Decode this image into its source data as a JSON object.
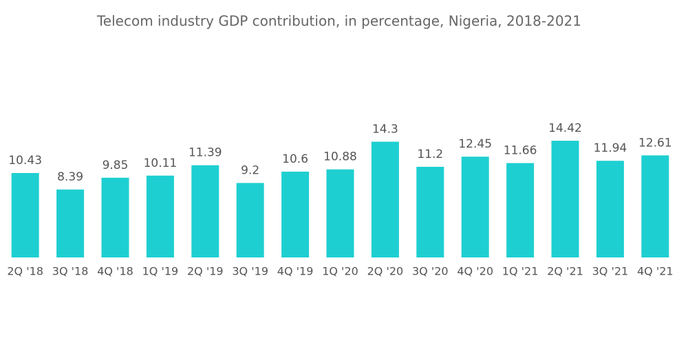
{
  "chart_data": {
    "type": "bar",
    "title": "Telecom industry GDP contribution, in percentage, Nigeria, 2018-2021",
    "categories": [
      "2Q '18",
      "3Q '18",
      "4Q '18",
      "1Q '19",
      "2Q '19",
      "3Q '19",
      "4Q '19",
      "1Q '20",
      "2Q '20",
      "3Q '20",
      "4Q '20",
      "1Q '21",
      "2Q '21",
      "3Q '21",
      "4Q '21"
    ],
    "values": [
      10.43,
      8.39,
      9.85,
      10.11,
      11.39,
      9.2,
      10.6,
      10.88,
      14.3,
      11.2,
      12.45,
      11.66,
      14.42,
      11.94,
      12.61
    ],
    "color": "#1ecfd1"
  }
}
